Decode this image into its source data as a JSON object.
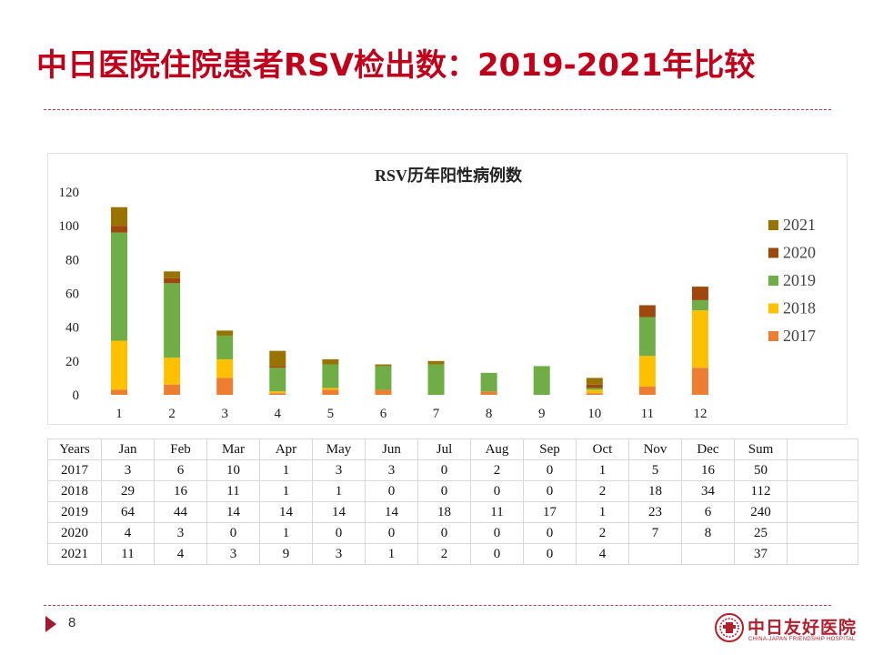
{
  "slide": {
    "title": "中日医院住院患者RSV检出数：2019-2021年比较",
    "page_number": "8",
    "logo_text": "中日友好医院",
    "logo_subtext": "CHINA-JAPAN FRIENDSHIP HOSPITAL",
    "title_color": "#c0001a"
  },
  "chart_data": {
    "type": "bar",
    "stacked": true,
    "title": "RSV历年阳性病例数",
    "categories": [
      "1",
      "2",
      "3",
      "4",
      "5",
      "6",
      "7",
      "8",
      "9",
      "10",
      "11",
      "12"
    ],
    "series": [
      {
        "name": "2017",
        "color": "#ed7d31",
        "values": [
          3,
          6,
          10,
          1,
          3,
          3,
          0,
          2,
          0,
          1,
          5,
          16
        ]
      },
      {
        "name": "2018",
        "color": "#ffc000",
        "values": [
          29,
          16,
          11,
          1,
          1,
          0,
          0,
          0,
          0,
          2,
          18,
          34
        ]
      },
      {
        "name": "2019",
        "color": "#70ad47",
        "values": [
          64,
          44,
          14,
          14,
          14,
          14,
          18,
          11,
          17,
          1,
          23,
          6
        ]
      },
      {
        "name": "2020",
        "color": "#9e480e",
        "values": [
          4,
          3,
          0,
          1,
          0,
          0,
          0,
          0,
          0,
          2,
          7,
          8
        ]
      },
      {
        "name": "2021",
        "color": "#997300",
        "values": [
          11,
          4,
          3,
          9,
          3,
          1,
          2,
          0,
          0,
          4,
          0,
          0
        ]
      }
    ],
    "ylim": [
      0,
      120
    ],
    "yticks": [
      0,
      20,
      40,
      60,
      80,
      100,
      120
    ],
    "legend": "right",
    "grid": false
  },
  "table": {
    "header": [
      "Years",
      "Jan",
      "Feb",
      "Mar",
      "Apr",
      "May",
      "Jun",
      "Jul",
      "Aug",
      "Sep",
      "Oct",
      "Nov",
      "Dec",
      "Sum"
    ],
    "rows": [
      [
        "2017",
        "3",
        "6",
        "10",
        "1",
        "3",
        "3",
        "0",
        "2",
        "0",
        "1",
        "5",
        "16",
        "50"
      ],
      [
        "2018",
        "29",
        "16",
        "11",
        "1",
        "1",
        "0",
        "0",
        "0",
        "0",
        "2",
        "18",
        "34",
        "112"
      ],
      [
        "2019",
        "64",
        "44",
        "14",
        "14",
        "14",
        "14",
        "18",
        "11",
        "17",
        "1",
        "23",
        "6",
        "240"
      ],
      [
        "2020",
        "4",
        "3",
        "0",
        "1",
        "0",
        "0",
        "0",
        "0",
        "0",
        "2",
        "7",
        "8",
        "25"
      ],
      [
        "2021",
        "11",
        "4",
        "3",
        "9",
        "3",
        "1",
        "2",
        "0",
        "0",
        "4",
        "",
        "",
        "37"
      ]
    ]
  }
}
